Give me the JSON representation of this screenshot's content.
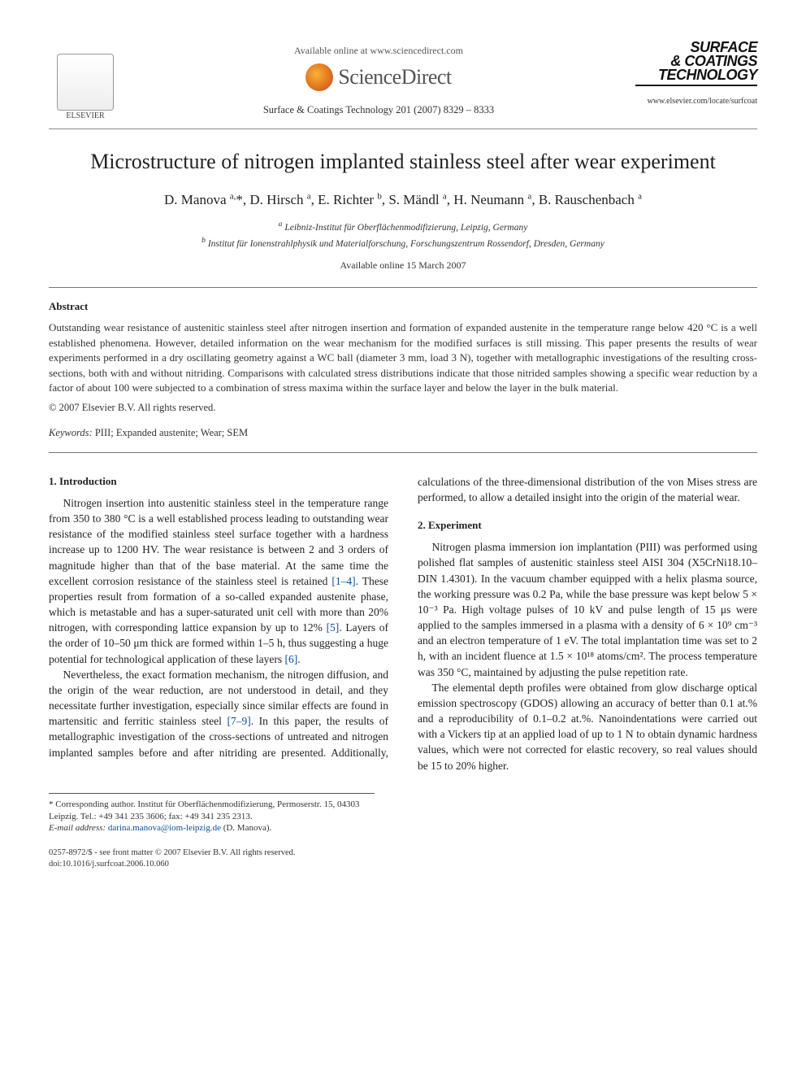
{
  "header": {
    "available_line": "Available online at www.sciencedirect.com",
    "sd_brand": "ScienceDirect",
    "journal_ref": "Surface & Coatings Technology 201 (2007) 8329 – 8333",
    "elsevier_label": "ELSEVIER",
    "surf_line1": "SURFACE",
    "surf_line2": "& COATINGS",
    "surf_line3": "TECHNOLOGY",
    "journal_url": "www.elsevier.com/locate/surfcoat"
  },
  "title": "Microstructure of nitrogen implanted stainless steel after wear experiment",
  "authors_html": "D. Manova <sup>a,</sup>*, D. Hirsch <sup>a</sup>, E. Richter <sup>b</sup>, S. Mändl <sup>a</sup>, H. Neumann <sup>a</sup>, B. Rauschenbach <sup>a</sup>",
  "affiliations": {
    "a": "Leibniz-Institut für Oberflächenmodifizierung, Leipzig, Germany",
    "b": "Institut für Ionenstrahlphysik und Materialforschung, Forschungszentrum Rossendorf, Dresden, Germany"
  },
  "pub_date": "Available online 15 March 2007",
  "abstract_label": "Abstract",
  "abstract_text": "Outstanding wear resistance of austenitic stainless steel after nitrogen insertion and formation of expanded austenite in the temperature range below 420 °C is a well established phenomena. However, detailed information on the wear mechanism for the modified surfaces is still missing. This paper presents the results of wear experiments performed in a dry oscillating geometry against a WC ball (diameter 3 mm, load 3 N), together with metallographic investigations of the resulting cross-sections, both with and without nitriding. Comparisons with calculated stress distributions indicate that those nitrided samples showing a specific wear reduction by a factor of about 100 were subjected to a combination of stress maxima within the surface layer and below the layer in the bulk material.",
  "copyright": "© 2007 Elsevier B.V. All rights reserved.",
  "keywords_label": "Keywords:",
  "keywords": "PIII; Expanded austenite; Wear; SEM",
  "sections": {
    "intro_head": "1. Introduction",
    "intro_p1_a": "Nitrogen insertion into austenitic stainless steel in the temperature range from 350 to 380 °C is a well established process leading to outstanding wear resistance of the modified stainless steel surface together with a hardness increase up to 1200 HV. The wear resistance is between 2 and 3 orders of magnitude higher than that of the base material. At the same time the excellent corrosion resistance of the stainless steel is retained ",
    "intro_ref1": "[1–4]",
    "intro_p1_b": ". These properties result from formation of a so-called expanded austenite phase, which is metastable and has a super-saturated unit cell with more than 20% nitrogen, with corresponding lattice expansion by up to 12% ",
    "intro_ref2": "[5]",
    "intro_p1_c": ". Layers of the order of 10–50 μm thick are formed within 1–5 h, thus suggesting a huge potential for technological application of these layers ",
    "intro_ref3": "[6]",
    "intro_p1_d": ".",
    "intro_p2_a": "Nevertheless, the exact formation mechanism, the nitrogen diffusion, and the origin of the wear reduction, are not understood in detail, and they necessitate further investigation, especially since similar effects are found in martensitic and ferritic stainless steel ",
    "intro_ref4": "[7–9]",
    "intro_p2_b": ". In this paper, the results of metallographic investigation of the cross-sections of untreated and nitrogen implanted samples before and after nitriding are presented. Additionally, calculations of the three-dimensional distribution of the von Mises stress are performed, to allow a detailed insight into the origin of the material wear.",
    "exp_head": "2. Experiment",
    "exp_p1": "Nitrogen plasma immersion ion implantation (PIII) was performed using polished flat samples of austenitic stainless steel AISI 304 (X5CrNi18.10–DIN 1.4301). In the vacuum chamber equipped with a helix plasma source, the working pressure was 0.2 Pa, while the base pressure was kept below 5 × 10⁻³ Pa. High voltage pulses of 10 kV and pulse length of 15 μs were applied to the samples immersed in a plasma with a density of 6 × 10⁹ cm⁻³ and an electron temperature of 1 eV. The total implantation time was set to 2 h, with an incident fluence at 1.5 × 10¹⁸ atoms/cm². The process temperature was 350 °C, maintained by adjusting the pulse repetition rate.",
    "exp_p2": "The elemental depth profiles were obtained from glow discharge optical emission spectroscopy (GDOS) allowing an accuracy of better than 0.1 at.% and a reproducibility of 0.1–0.2 at.%. Nanoindentations were carried out with a Vickers tip at an applied load of up to 1 N to obtain dynamic hardness values, which were not corrected for elastic recovery, so real values should be 15 to 20% higher."
  },
  "footnote": {
    "corr": "* Corresponding author. Institut für Oberflächenmodifizierung, Permoserstr. 15, 04303 Leipzig. Tel.: +49 341 235 3606; fax: +49 341 235 2313.",
    "email_label": "E-mail address:",
    "email": "darina.manova@iom-leipzig.de",
    "email_suffix": " (D. Manova)."
  },
  "bottom": {
    "issn": "0257-8972/$ - see front matter © 2007 Elsevier B.V. All rights reserved.",
    "doi": "doi:10.1016/j.surfcoat.2006.10.060"
  },
  "colors": {
    "text": "#333333",
    "link": "#0a4da0",
    "rule": "#888888",
    "bg": "#ffffff"
  },
  "typography": {
    "body_pt": 13.5,
    "title_pt": 26,
    "authors_pt": 17,
    "abstract_pt": 13,
    "footnote_pt": 11
  }
}
